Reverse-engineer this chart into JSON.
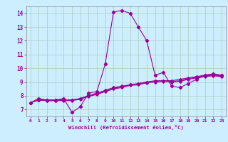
{
  "title": "",
  "xlabel": "Windchill (Refroidissement éolien,°C)",
  "ylabel": "",
  "background_color": "#cceeff",
  "grid_color": "#aaccbb",
  "line_color": "#990099",
  "xlim": [
    -0.5,
    23.5
  ],
  "ylim": [
    6.5,
    14.5
  ],
  "xticks": [
    0,
    1,
    2,
    3,
    4,
    5,
    6,
    7,
    8,
    9,
    10,
    11,
    12,
    13,
    14,
    15,
    16,
    17,
    18,
    19,
    20,
    21,
    22,
    23
  ],
  "yticks": [
    7,
    8,
    9,
    10,
    11,
    12,
    13,
    14
  ],
  "line1_x": [
    0,
    1,
    2,
    3,
    4,
    5,
    6,
    7,
    8,
    9,
    10,
    11,
    12,
    13,
    14,
    15,
    16,
    17,
    18,
    19,
    20,
    21,
    22,
    23
  ],
  "line1_y": [
    7.5,
    7.8,
    7.7,
    7.7,
    7.8,
    6.8,
    7.2,
    8.2,
    8.3,
    10.3,
    14.1,
    14.2,
    14.0,
    13.0,
    12.0,
    9.5,
    9.7,
    8.7,
    8.6,
    8.9,
    9.2,
    9.5,
    9.6,
    9.5
  ],
  "line2_x": [
    0,
    1,
    2,
    3,
    4,
    5,
    6,
    7,
    8,
    9,
    10,
    11,
    12,
    13,
    14,
    15,
    16,
    17,
    18,
    19,
    20,
    21,
    22,
    23
  ],
  "line2_y": [
    7.5,
    7.7,
    7.7,
    7.7,
    7.7,
    7.7,
    7.8,
    8.0,
    8.2,
    8.4,
    8.6,
    8.7,
    8.8,
    8.9,
    9.0,
    9.1,
    9.1,
    9.1,
    9.2,
    9.3,
    9.4,
    9.5,
    9.55,
    9.5
  ],
  "line3_x": [
    0,
    1,
    2,
    3,
    4,
    5,
    6,
    7,
    8,
    9,
    10,
    11,
    12,
    13,
    14,
    15,
    16,
    17,
    18,
    19,
    20,
    21,
    22,
    23
  ],
  "line3_y": [
    7.5,
    7.7,
    7.65,
    7.65,
    7.7,
    7.7,
    7.8,
    8.0,
    8.15,
    8.35,
    8.55,
    8.65,
    8.8,
    8.85,
    9.0,
    9.05,
    9.1,
    9.05,
    9.1,
    9.25,
    9.35,
    9.45,
    9.5,
    9.45
  ],
  "line4_x": [
    0,
    1,
    2,
    3,
    4,
    5,
    6,
    7,
    8,
    9,
    10,
    11,
    12,
    13,
    14,
    15,
    16,
    17,
    18,
    19,
    20,
    21,
    22,
    23
  ],
  "line4_y": [
    7.5,
    7.7,
    7.65,
    7.65,
    7.65,
    7.65,
    7.75,
    7.95,
    8.1,
    8.3,
    8.5,
    8.6,
    8.75,
    8.8,
    8.95,
    9.0,
    9.05,
    9.0,
    9.05,
    9.2,
    9.3,
    9.4,
    9.45,
    9.4
  ]
}
